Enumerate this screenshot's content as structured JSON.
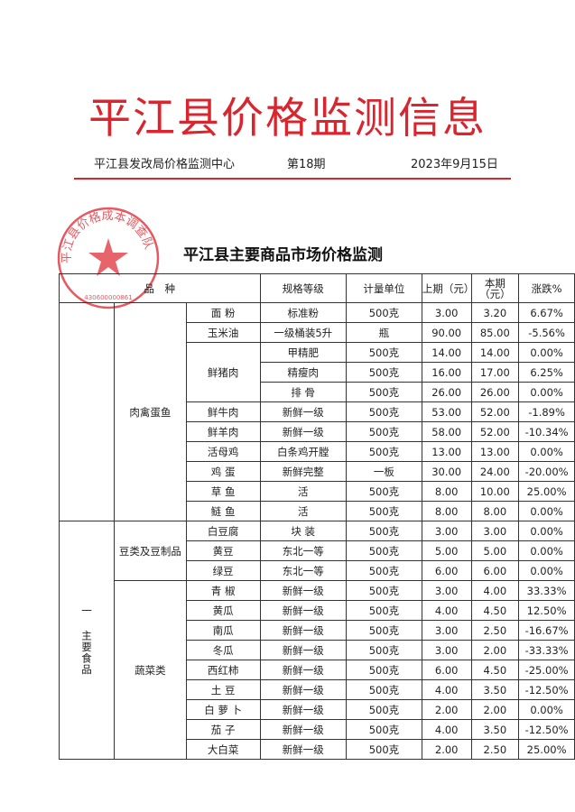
{
  "header": {
    "title": "平江县价格监测信息",
    "issuer": "平江县发改局价格监测中心",
    "issue": "第18期",
    "date": "2023年9月15日"
  },
  "stamp": {
    "text": "平江县价格成本调查队",
    "number": "430600000861"
  },
  "subtitle": "平江县主要商品市场价格监测",
  "colors": {
    "title_red": "#d9262e",
    "stamp_red": "#e0303a"
  },
  "table": {
    "headers": {
      "variety": "品　种",
      "spec": "规格等级",
      "unit": "计量单位",
      "prev": "上期（元）",
      "curr": "本期（元）",
      "change": "涨跌%"
    },
    "section": "一 主要食品",
    "groups": [
      {
        "name": "肉禽蛋鱼",
        "rows": [
          {
            "item": "面 粉",
            "spec": "标准粉",
            "unit": "500克",
            "prev": "3.00",
            "curr": "3.20",
            "change": "6.67%"
          },
          {
            "item": "玉米油",
            "spec": "一级桶装5升",
            "unit": "瓶",
            "prev": "90.00",
            "curr": "85.00",
            "change": "-5.56%"
          },
          {
            "item": "鲜猪肉",
            "spec": "甲精肥",
            "unit": "500克",
            "prev": "14.00",
            "curr": "14.00",
            "change": "0.00%"
          },
          {
            "item": "",
            "spec": "精瘦肉",
            "unit": "500克",
            "prev": "16.00",
            "curr": "17.00",
            "change": "6.25%"
          },
          {
            "item": "",
            "spec": "排 骨",
            "unit": "500克",
            "prev": "26.00",
            "curr": "26.00",
            "change": "0.00%"
          },
          {
            "item": "鲜牛肉",
            "spec": "新鲜一级",
            "unit": "500克",
            "prev": "53.00",
            "curr": "52.00",
            "change": "-1.89%"
          },
          {
            "item": "鲜羊肉",
            "spec": "新鲜一级",
            "unit": "500克",
            "prev": "58.00",
            "curr": "52.00",
            "change": "-10.34%"
          },
          {
            "item": "活母鸡",
            "spec": "白条鸡开膛",
            "unit": "500克",
            "prev": "13.00",
            "curr": "13.00",
            "change": "0.00%"
          },
          {
            "item": "鸡 蛋",
            "spec": "新鲜完整",
            "unit": "一板",
            "prev": "30.00",
            "curr": "24.00",
            "change": "-20.00%"
          },
          {
            "item": "草 鱼",
            "spec": "活",
            "unit": "500克",
            "prev": "8.00",
            "curr": "10.00",
            "change": "25.00%"
          },
          {
            "item": "鲢 鱼",
            "spec": "活",
            "unit": "500克",
            "prev": "8.00",
            "curr": "8.00",
            "change": "0.00%"
          }
        ]
      },
      {
        "name": "豆类及豆制品",
        "rows": [
          {
            "item": "白豆腐",
            "spec": "块 装",
            "unit": "500克",
            "prev": "3.00",
            "curr": "3.00",
            "change": "0.00%"
          },
          {
            "item": "黄豆",
            "spec": "东北一等",
            "unit": "500克",
            "prev": "5.00",
            "curr": "5.00",
            "change": "0.00%"
          },
          {
            "item": "绿豆",
            "spec": "东北一等",
            "unit": "500克",
            "prev": "6.00",
            "curr": "6.00",
            "change": "0.00%"
          }
        ]
      },
      {
        "name": "蔬菜类",
        "rows": [
          {
            "item": "青 椒",
            "spec": "新鲜一级",
            "unit": "500克",
            "prev": "3.00",
            "curr": "4.00",
            "change": "33.33%"
          },
          {
            "item": "黄瓜",
            "spec": "新鲜一级",
            "unit": "500克",
            "prev": "4.00",
            "curr": "4.50",
            "change": "12.50%"
          },
          {
            "item": "南瓜",
            "spec": "新鲜一级",
            "unit": "500克",
            "prev": "3.00",
            "curr": "2.50",
            "change": "-16.67%"
          },
          {
            "item": "冬瓜",
            "spec": "新鲜一级",
            "unit": "500克",
            "prev": "3.00",
            "curr": "2.00",
            "change": "-33.33%"
          },
          {
            "item": "西红柿",
            "spec": "新鲜一级",
            "unit": "500克",
            "prev": "6.00",
            "curr": "4.50",
            "change": "-25.00%"
          },
          {
            "item": "土 豆",
            "spec": "新鲜一级",
            "unit": "500克",
            "prev": "4.00",
            "curr": "3.50",
            "change": "-12.50%"
          },
          {
            "item": "白 萝 卜",
            "spec": "新鲜一级",
            "unit": "500克",
            "prev": "2.00",
            "curr": "2.00",
            "change": "0.00%"
          },
          {
            "item": "茄 子",
            "spec": "新鲜一级",
            "unit": "500克",
            "prev": "4.00",
            "curr": "3.50",
            "change": "-12.50%"
          },
          {
            "item": "大白菜",
            "spec": "新鲜一级",
            "unit": "500克",
            "prev": "2.00",
            "curr": "2.50",
            "change": "25.00%"
          }
        ]
      }
    ]
  }
}
